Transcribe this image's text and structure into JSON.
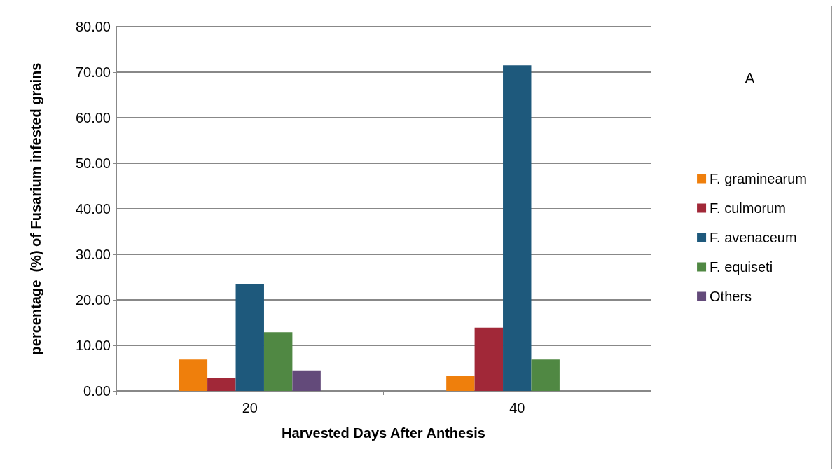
{
  "chart_data": {
    "type": "bar",
    "xlabel": "Harvested Days After Anthesis",
    "ylabel": "percentage  (%) of Fusarium infested grains",
    "annotations": [
      "A"
    ],
    "categories": [
      "20",
      "40"
    ],
    "series": [
      {
        "name": "F. graminearum",
        "color": "#ef7f0c",
        "values": [
          6.9,
          3.4
        ]
      },
      {
        "name": "F. culmorum",
        "color": "#a12838",
        "values": [
          2.9,
          13.9
        ]
      },
      {
        "name": "F. avenaceum",
        "color": "#1e597c",
        "values": [
          23.4,
          71.5
        ]
      },
      {
        "name": "F. equiseti",
        "color": "#508843",
        "values": [
          12.9,
          6.9
        ]
      },
      {
        "name": "Others",
        "color": "#634a7a",
        "values": [
          4.5,
          0
        ]
      }
    ],
    "ylim": [
      0,
      80
    ],
    "yticks": [
      {
        "value": 0,
        "label": "0.00"
      },
      {
        "value": 10,
        "label": "10.00"
      },
      {
        "value": 20,
        "label": "20.00"
      },
      {
        "value": 30,
        "label": "30.00"
      },
      {
        "value": 40,
        "label": "40.00"
      },
      {
        "value": 50,
        "label": "50.00"
      },
      {
        "value": 60,
        "label": "60.00"
      },
      {
        "value": 70,
        "label": "70.00"
      },
      {
        "value": 80,
        "label": "80.00"
      }
    ],
    "grid": "y",
    "legend": "right"
  }
}
